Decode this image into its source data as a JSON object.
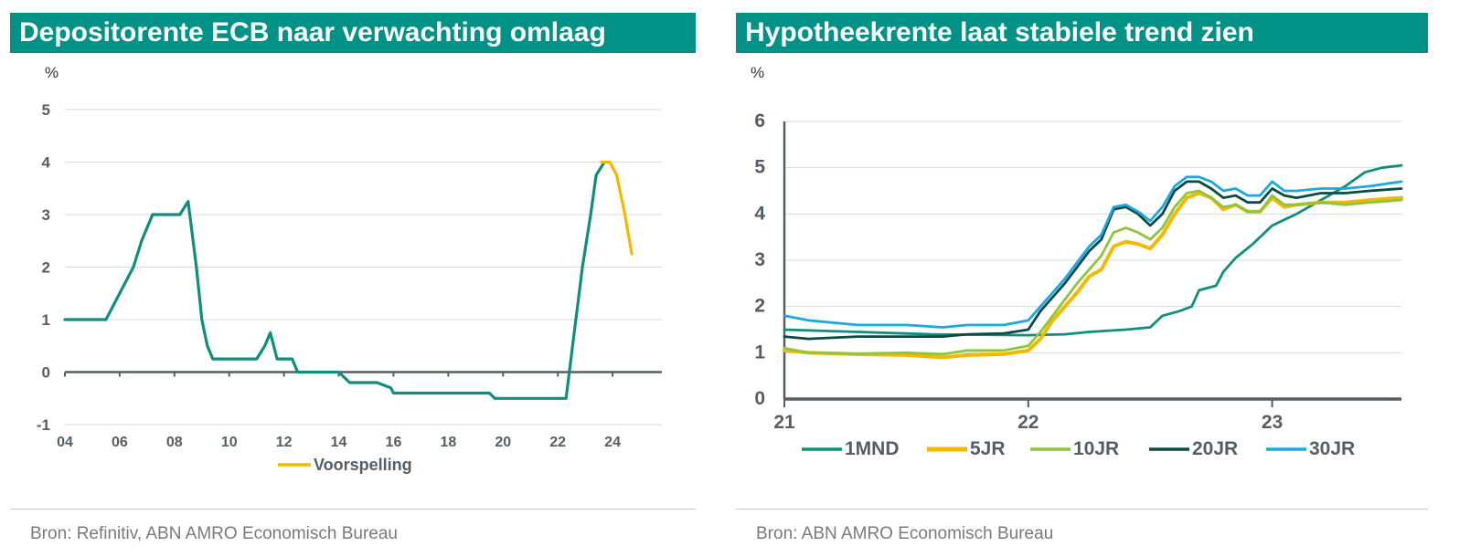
{
  "colors": {
    "accent": "#009286",
    "teal": "#0e8f7c",
    "yellow": "#f5b800",
    "lightgreen": "#8cc63e",
    "darkteal": "#0d4a43",
    "lightblue": "#1ba8e0",
    "axis": "#555e66",
    "grid": "#d9d9d9"
  },
  "left": {
    "title": "Depositorente ECB naar verwachting omlaag",
    "source": "Bron: Refinitiv, ABN AMRO Economisch Bureau"
  },
  "right": {
    "title": "Hypotheekrente laat stabiele trend zien",
    "source": "Bron: ABN AMRO Economisch Bureau"
  },
  "chart_data": [
    {
      "type": "line",
      "title": "Depositorente ECB naar verwachting omlaag",
      "ylabel": "%",
      "xlim": [
        2004,
        2025.8
      ],
      "ylim": [
        -1,
        5
      ],
      "yticks": [
        -1,
        0,
        1,
        2,
        3,
        4,
        5
      ],
      "xticks": [
        {
          "value": 2004,
          "label": "04"
        },
        {
          "value": 2006,
          "label": "06"
        },
        {
          "value": 2008,
          "label": "08"
        },
        {
          "value": 2010,
          "label": "10"
        },
        {
          "value": 2012,
          "label": "12"
        },
        {
          "value": 2014,
          "label": "14"
        },
        {
          "value": 2016,
          "label": "16"
        },
        {
          "value": 2018,
          "label": "18"
        },
        {
          "value": 2020,
          "label": "20"
        },
        {
          "value": 2022,
          "label": "22"
        },
        {
          "value": 2024,
          "label": "24"
        }
      ],
      "grid": true,
      "legend_position": "bottom",
      "series": [
        {
          "color": "#0e8f7c",
          "points": [
            [
              2004.0,
              1.0
            ],
            [
              2005.5,
              1.0
            ],
            [
              2006.5,
              2.0
            ],
            [
              2006.8,
              2.5
            ],
            [
              2007.2,
              3.0
            ],
            [
              2008.2,
              3.0
            ],
            [
              2008.5,
              3.25
            ],
            [
              2008.8,
              2.0
            ],
            [
              2009.0,
              1.0
            ],
            [
              2009.2,
              0.5
            ],
            [
              2009.4,
              0.25
            ],
            [
              2011.0,
              0.25
            ],
            [
              2011.3,
              0.5
            ],
            [
              2011.5,
              0.75
            ],
            [
              2011.75,
              0.25
            ],
            [
              2012.3,
              0.25
            ],
            [
              2012.5,
              0.0
            ],
            [
              2014.0,
              0.0
            ],
            [
              2014.4,
              -0.2
            ],
            [
              2015.4,
              -0.2
            ],
            [
              2015.9,
              -0.3
            ],
            [
              2016.0,
              -0.4
            ],
            [
              2019.5,
              -0.4
            ],
            [
              2019.7,
              -0.5
            ],
            [
              2022.3,
              -0.5
            ],
            [
              2022.6,
              0.75
            ],
            [
              2022.9,
              2.0
            ],
            [
              2023.2,
              3.0
            ],
            [
              2023.4,
              3.75
            ],
            [
              2023.7,
              4.0
            ]
          ]
        },
        {
          "name": "Voorspelling",
          "color": "#f5b800",
          "points": [
            [
              2023.6,
              4.0
            ],
            [
              2023.9,
              4.0
            ],
            [
              2024.15,
              3.75
            ],
            [
              2024.45,
              3.0
            ],
            [
              2024.7,
              2.25
            ]
          ]
        }
      ]
    },
    {
      "type": "line",
      "title": "Hypotheekrente laat stabiele trend zien",
      "ylabel": "%",
      "xlim": [
        2021.0,
        2023.53
      ],
      "ylim": [
        0,
        6
      ],
      "yticks": [
        0,
        1,
        2,
        3,
        4,
        5,
        6
      ],
      "xticks": [
        {
          "value": 2021,
          "label": "21"
        },
        {
          "value": 2022,
          "label": "22"
        },
        {
          "value": 2023,
          "label": "23"
        }
      ],
      "grid": true,
      "legend_position": "bottom",
      "series": [
        {
          "name": "1MND",
          "color": "#0e8f7c",
          "points": [
            [
              2021.0,
              1.5
            ],
            [
              2021.3,
              1.45
            ],
            [
              2021.6,
              1.4
            ],
            [
              2022.0,
              1.38
            ],
            [
              2022.15,
              1.4
            ],
            [
              2022.25,
              1.45
            ],
            [
              2022.4,
              1.5
            ],
            [
              2022.5,
              1.55
            ],
            [
              2022.55,
              1.8
            ],
            [
              2022.62,
              1.9
            ],
            [
              2022.67,
              2.0
            ],
            [
              2022.7,
              2.35
            ],
            [
              2022.77,
              2.45
            ],
            [
              2022.8,
              2.75
            ],
            [
              2022.85,
              3.05
            ],
            [
              2022.92,
              3.35
            ],
            [
              2023.0,
              3.75
            ],
            [
              2023.1,
              4.0
            ],
            [
              2023.2,
              4.3
            ],
            [
              2023.3,
              4.6
            ],
            [
              2023.38,
              4.9
            ],
            [
              2023.45,
              5.0
            ],
            [
              2023.53,
              5.05
            ]
          ]
        },
        {
          "name": "5JR",
          "color": "#f5b800",
          "points": [
            [
              2021.0,
              1.05
            ],
            [
              2021.1,
              1.0
            ],
            [
              2021.3,
              0.97
            ],
            [
              2021.5,
              0.95
            ],
            [
              2021.65,
              0.9
            ],
            [
              2021.75,
              0.95
            ],
            [
              2021.9,
              0.97
            ],
            [
              2022.0,
              1.05
            ],
            [
              2022.05,
              1.3
            ],
            [
              2022.1,
              1.7
            ],
            [
              2022.15,
              2.0
            ],
            [
              2022.2,
              2.3
            ],
            [
              2022.25,
              2.65
            ],
            [
              2022.3,
              2.8
            ],
            [
              2022.35,
              3.3
            ],
            [
              2022.4,
              3.4
            ],
            [
              2022.45,
              3.35
            ],
            [
              2022.5,
              3.25
            ],
            [
              2022.55,
              3.55
            ],
            [
              2022.6,
              4.0
            ],
            [
              2022.65,
              4.35
            ],
            [
              2022.7,
              4.45
            ],
            [
              2022.75,
              4.35
            ],
            [
              2022.8,
              4.1
            ],
            [
              2022.85,
              4.2
            ],
            [
              2022.9,
              4.05
            ],
            [
              2022.95,
              4.05
            ],
            [
              2023.0,
              4.35
            ],
            [
              2023.05,
              4.15
            ],
            [
              2023.1,
              4.2
            ],
            [
              2023.2,
              4.25
            ],
            [
              2023.3,
              4.25
            ],
            [
              2023.4,
              4.3
            ],
            [
              2023.53,
              4.35
            ]
          ]
        },
        {
          "name": "10JR",
          "color": "#8cc63e",
          "points": [
            [
              2021.0,
              1.1
            ],
            [
              2021.1,
              1.0
            ],
            [
              2021.3,
              0.98
            ],
            [
              2021.5,
              1.0
            ],
            [
              2021.65,
              0.97
            ],
            [
              2021.75,
              1.05
            ],
            [
              2021.9,
              1.05
            ],
            [
              2022.0,
              1.15
            ],
            [
              2022.05,
              1.45
            ],
            [
              2022.1,
              1.8
            ],
            [
              2022.15,
              2.15
            ],
            [
              2022.2,
              2.5
            ],
            [
              2022.25,
              2.8
            ],
            [
              2022.3,
              3.1
            ],
            [
              2022.35,
              3.6
            ],
            [
              2022.4,
              3.7
            ],
            [
              2022.45,
              3.6
            ],
            [
              2022.5,
              3.45
            ],
            [
              2022.55,
              3.7
            ],
            [
              2022.6,
              4.15
            ],
            [
              2022.65,
              4.45
            ],
            [
              2022.7,
              4.5
            ],
            [
              2022.75,
              4.35
            ],
            [
              2022.8,
              4.15
            ],
            [
              2022.85,
              4.2
            ],
            [
              2022.9,
              4.05
            ],
            [
              2022.95,
              4.05
            ],
            [
              2023.0,
              4.4
            ],
            [
              2023.05,
              4.2
            ],
            [
              2023.1,
              4.2
            ],
            [
              2023.2,
              4.25
            ],
            [
              2023.3,
              4.2
            ],
            [
              2023.4,
              4.25
            ],
            [
              2023.53,
              4.3
            ]
          ]
        },
        {
          "name": "20JR",
          "color": "#0d4a43",
          "points": [
            [
              2021.0,
              1.35
            ],
            [
              2021.1,
              1.3
            ],
            [
              2021.3,
              1.35
            ],
            [
              2021.5,
              1.35
            ],
            [
              2021.65,
              1.35
            ],
            [
              2021.75,
              1.4
            ],
            [
              2021.9,
              1.42
            ],
            [
              2022.0,
              1.5
            ],
            [
              2022.05,
              1.9
            ],
            [
              2022.1,
              2.2
            ],
            [
              2022.15,
              2.5
            ],
            [
              2022.2,
              2.85
            ],
            [
              2022.25,
              3.2
            ],
            [
              2022.3,
              3.45
            ],
            [
              2022.35,
              4.1
            ],
            [
              2022.4,
              4.15
            ],
            [
              2022.45,
              4.0
            ],
            [
              2022.5,
              3.75
            ],
            [
              2022.55,
              4.0
            ],
            [
              2022.6,
              4.5
            ],
            [
              2022.65,
              4.7
            ],
            [
              2022.7,
              4.7
            ],
            [
              2022.75,
              4.55
            ],
            [
              2022.8,
              4.35
            ],
            [
              2022.85,
              4.4
            ],
            [
              2022.9,
              4.25
            ],
            [
              2022.95,
              4.25
            ],
            [
              2023.0,
              4.55
            ],
            [
              2023.05,
              4.4
            ],
            [
              2023.1,
              4.35
            ],
            [
              2023.2,
              4.45
            ],
            [
              2023.3,
              4.45
            ],
            [
              2023.4,
              4.5
            ],
            [
              2023.53,
              4.55
            ]
          ]
        },
        {
          "name": "30JR",
          "color": "#1ba8e0",
          "points": [
            [
              2021.0,
              1.8
            ],
            [
              2021.1,
              1.7
            ],
            [
              2021.3,
              1.6
            ],
            [
              2021.5,
              1.6
            ],
            [
              2021.65,
              1.55
            ],
            [
              2021.75,
              1.6
            ],
            [
              2021.9,
              1.6
            ],
            [
              2022.0,
              1.7
            ],
            [
              2022.05,
              2.0
            ],
            [
              2022.1,
              2.3
            ],
            [
              2022.15,
              2.6
            ],
            [
              2022.2,
              2.95
            ],
            [
              2022.25,
              3.3
            ],
            [
              2022.3,
              3.55
            ],
            [
              2022.35,
              4.15
            ],
            [
              2022.4,
              4.2
            ],
            [
              2022.45,
              4.05
            ],
            [
              2022.5,
              3.85
            ],
            [
              2022.55,
              4.15
            ],
            [
              2022.6,
              4.6
            ],
            [
              2022.65,
              4.8
            ],
            [
              2022.7,
              4.8
            ],
            [
              2022.75,
              4.7
            ],
            [
              2022.8,
              4.5
            ],
            [
              2022.85,
              4.55
            ],
            [
              2022.9,
              4.4
            ],
            [
              2022.95,
              4.4
            ],
            [
              2023.0,
              4.7
            ],
            [
              2023.05,
              4.5
            ],
            [
              2023.1,
              4.5
            ],
            [
              2023.2,
              4.55
            ],
            [
              2023.3,
              4.55
            ],
            [
              2023.4,
              4.6
            ],
            [
              2023.53,
              4.7
            ]
          ]
        }
      ]
    }
  ]
}
